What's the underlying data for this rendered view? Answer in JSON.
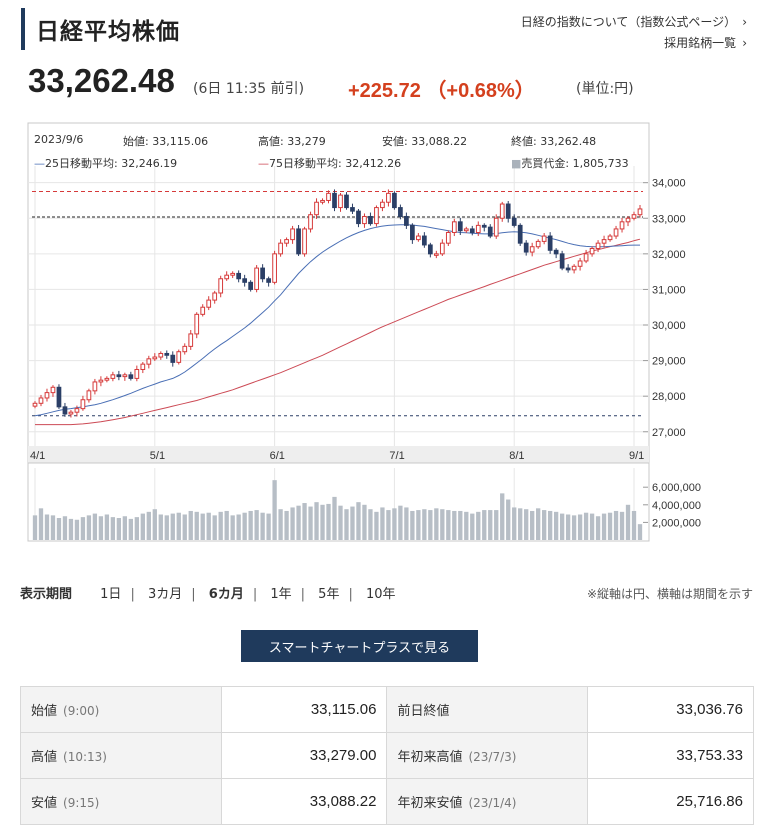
{
  "header": {
    "title": "日経平均株価",
    "link1": "日経の指数について（指数公式ページ）",
    "link2": "採用銘柄一覧"
  },
  "quote": {
    "price": "33,262.48",
    "meta": "(6日 11:35 前引)",
    "change": "+225.72 （+0.68%）",
    "unit": "(単位:円)"
  },
  "chart_info": {
    "date": "2023/9/6",
    "open": "始値: 33,115.06",
    "high": "高値: 33,279",
    "low": "安値: 33,088.22",
    "close": "終値: 33,262.48",
    "ma25": "25日移動平均: 32,246.19",
    "ma75": "75日移動平均: 32,412.26",
    "volume": "売買代金: 1,805,733"
  },
  "colors": {
    "up": "#d63a3a",
    "down": "#2b3f66",
    "ma25": "#4a6fb5",
    "ma75": "#cc4a55",
    "volume": "#b7bec6",
    "accent": "#1f3a5c"
  },
  "chart_data": {
    "type": "candlestick",
    "y_ticks": [
      "34,000",
      "33,000",
      "32,000",
      "31,000",
      "30,000",
      "29,000",
      "28,000",
      "27,000"
    ],
    "ylim": [
      26600,
      34300
    ],
    "x_tick_labels": [
      "4/1",
      "5/1",
      "6/1",
      "7/1",
      "8/1",
      "9/1"
    ],
    "volume_ticks": [
      "6,000,000",
      "4,000,000",
      "2,000,000"
    ],
    "volume_ylim": [
      0,
      7500000
    ],
    "reference_lines": [
      33753.33,
      33036.76,
      27450
    ],
    "closes": [
      27800,
      27950,
      28100,
      28250,
      27700,
      27500,
      27550,
      27650,
      27900,
      28150,
      28400,
      28450,
      28500,
      28600,
      28550,
      28600,
      28500,
      28750,
      28900,
      29050,
      29100,
      29200,
      29150,
      28950,
      29250,
      29400,
      29750,
      30300,
      30500,
      30700,
      30900,
      31300,
      31400,
      31450,
      31300,
      31200,
      31000,
      31600,
      31300,
      31200,
      32000,
      32300,
      32400,
      32700,
      32000,
      32700,
      33100,
      33450,
      33500,
      33700,
      33300,
      33650,
      33300,
      33200,
      32850,
      33050,
      32850,
      33300,
      33450,
      33700,
      33300,
      33050,
      32800,
      32400,
      32500,
      32250,
      32000,
      32000,
      32300,
      32600,
      32900,
      32650,
      32700,
      32600,
      32800,
      32750,
      32500,
      33000,
      33400,
      33000,
      32800,
      32300,
      32050,
      32200,
      32350,
      32500,
      32100,
      32000,
      31600,
      31550,
      31650,
      31800,
      32000,
      32150,
      32300,
      32400,
      32500,
      32700,
      32900,
      33000,
      33100,
      33262
    ],
    "ma25": [
      27450,
      27480,
      27520,
      27560,
      27600,
      27630,
      27650,
      27680,
      27700,
      27730,
      27760,
      27800,
      27850,
      27900,
      27960,
      28020,
      28080,
      28150,
      28220,
      28280,
      28340,
      28400,
      28450,
      28500,
      28580,
      28680,
      28800,
      28930,
      29060,
      29200,
      29330,
      29450,
      29560,
      29680,
      29800,
      29920,
      30050,
      30200,
      30350,
      30500,
      30680,
      30850,
      31050,
      31250,
      31450,
      31620,
      31780,
      31920,
      32050,
      32160,
      32260,
      32360,
      32450,
      32530,
      32600,
      32660,
      32710,
      32750,
      32780,
      32800,
      32810,
      32820,
      32820,
      32810,
      32790,
      32770,
      32740,
      32710,
      32680,
      32650,
      32620,
      32600,
      32590,
      32580,
      32570,
      32560,
      32560,
      32570,
      32590,
      32610,
      32620,
      32610,
      32590,
      32560,
      32520,
      32480,
      32440,
      32400,
      32350,
      32300,
      32260,
      32230,
      32210,
      32200,
      32200,
      32200,
      32210,
      32220,
      32230,
      32240,
      32245,
      32246
    ],
    "ma75": [
      27200,
      27200,
      27200,
      27200,
      27200,
      27200,
      27200,
      27210,
      27220,
      27240,
      27260,
      27280,
      27310,
      27340,
      27370,
      27400,
      27440,
      27480,
      27520,
      27560,
      27600,
      27640,
      27680,
      27720,
      27760,
      27800,
      27840,
      27880,
      27930,
      27980,
      28030,
      28080,
      28130,
      28180,
      28240,
      28300,
      28360,
      28420,
      28480,
      28540,
      28600,
      28660,
      28730,
      28800,
      28870,
      28940,
      29010,
      29080,
      29150,
      29230,
      29310,
      29390,
      29470,
      29550,
      29630,
      29710,
      29790,
      29870,
      29950,
      30020,
      30090,
      30160,
      30230,
      30300,
      30370,
      30440,
      30510,
      30580,
      30650,
      30720,
      30780,
      30840,
      30900,
      30960,
      31020,
      31080,
      31140,
      31200,
      31260,
      31320,
      31380,
      31440,
      31500,
      31560,
      31620,
      31680,
      31730,
      31780,
      31830,
      31880,
      31930,
      31980,
      32030,
      32080,
      32120,
      32160,
      32200,
      32240,
      32280,
      32320,
      32370,
      32412
    ],
    "volumes": [
      2800000,
      3600000,
      2900000,
      2800000,
      2500000,
      2700000,
      2400000,
      2300000,
      2600000,
      2800000,
      3000000,
      2700000,
      2900000,
      2600000,
      2500000,
      2700000,
      2400000,
      2600000,
      3000000,
      3200000,
      3500000,
      2900000,
      2800000,
      3000000,
      3100000,
      2900000,
      3300000,
      3200000,
      3000000,
      3100000,
      2800000,
      3200000,
      3300000,
      2800000,
      2900000,
      3100000,
      3300000,
      3400000,
      3100000,
      3000000,
      6800000,
      3500000,
      3300000,
      3700000,
      3900000,
      4200000,
      3800000,
      4300000,
      4000000,
      4100000,
      4900000,
      3900000,
      3500000,
      3800000,
      4300000,
      4000000,
      3500000,
      3200000,
      3700000,
      3400000,
      3600000,
      3900000,
      3700000,
      3300000,
      3400000,
      3500000,
      3400000,
      3600000,
      3500000,
      3400000,
      3300000,
      3300000,
      3200000,
      3000000,
      3200000,
      3400000,
      3400000,
      3400000,
      5300000,
      4600000,
      3700000,
      3600000,
      3500000,
      3300000,
      3600000,
      3400000,
      3300000,
      3200000,
      3000000,
      2900000,
      2800000,
      2900000,
      3100000,
      3000000,
      2700000,
      3000000,
      3100000,
      3300000,
      3200000,
      4000000,
      3300000,
      1800000
    ],
    "title": "",
    "xlabel": "",
    "ylabel": ""
  },
  "controls": {
    "period_label": "表示期間",
    "periods": [
      "1日",
      "3カ月",
      "6カ月",
      "1年",
      "5年",
      "10年"
    ],
    "active_period": "6カ月",
    "note": "※縦軸は円、横軸は期間を示す",
    "smartchart": "スマートチャートプラスで見る"
  },
  "stats": {
    "open_label": "始値",
    "open_time": "(9:00)",
    "open_value": "33,115.06",
    "prev_label": "前日終値",
    "prev_value": "33,036.76",
    "high_label": "高値",
    "high_time": "(10:13)",
    "high_value": "33,279.00",
    "ytd_high_label": "年初来高値",
    "ytd_high_date": "(23/7/3)",
    "ytd_high_value": "33,753.33",
    "low_label": "安値",
    "low_time": "(9:15)",
    "low_value": "33,088.22",
    "ytd_low_label": "年初来安値",
    "ytd_low_date": "(23/1/4)",
    "ytd_low_value": "25,716.86"
  }
}
